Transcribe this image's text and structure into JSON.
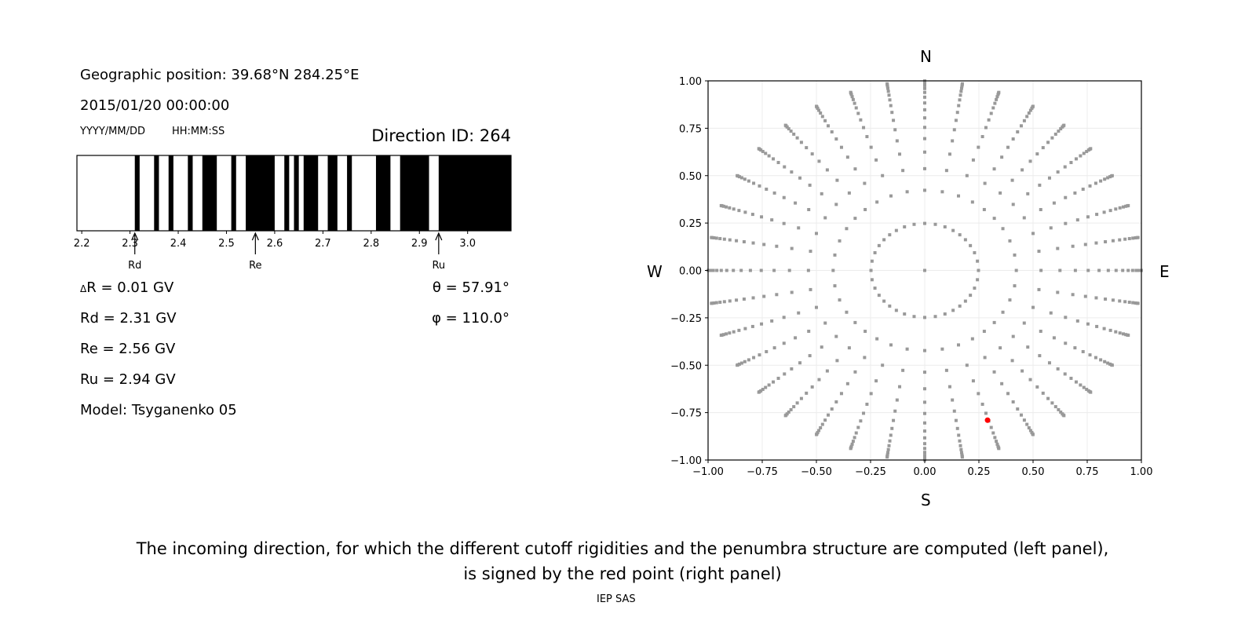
{
  "left_panel": {
    "position": "Geographic position: 39.68°N 284.25°E",
    "datetime": "2015/01/20 00:00:00",
    "date_format": "YYYY/MM/DD",
    "time_format": "HH:MM:SS",
    "direction_id": "Direction ID: 264",
    "delta_r": "R = 0.01 GV",
    "delta_symbol": "Δ",
    "rd": "Rd = 2.31 GV",
    "re": "Re = 2.56 GV",
    "ru": "Ru = 2.94 GV",
    "model": "Model: Tsyganenko 05",
    "theta": "θ = 57.91°",
    "phi": "φ = 110.0°"
  },
  "chart_data": [
    {
      "type": "bar",
      "description_type": "penumbra-strip",
      "xlim": [
        2.19,
        3.09
      ],
      "xticks": [
        "2.2",
        "2.3",
        "2.4",
        "2.5",
        "2.6",
        "2.7",
        "2.8",
        "2.9",
        "3.0"
      ],
      "black_intervals": [
        [
          2.31,
          2.32
        ],
        [
          2.35,
          2.36
        ],
        [
          2.38,
          2.39
        ],
        [
          2.42,
          2.43
        ],
        [
          2.45,
          2.48
        ],
        [
          2.51,
          2.52
        ],
        [
          2.54,
          2.6
        ],
        [
          2.62,
          2.63
        ],
        [
          2.64,
          2.65
        ],
        [
          2.66,
          2.69
        ],
        [
          2.71,
          2.73
        ],
        [
          2.75,
          2.76
        ],
        [
          2.81,
          2.84
        ],
        [
          2.86,
          2.92
        ],
        [
          2.94,
          3.09
        ]
      ],
      "markers": [
        {
          "label": "Rd",
          "value": 2.31
        },
        {
          "label": "Re",
          "value": 2.56
        },
        {
          "label": "Ru",
          "value": 2.94
        }
      ]
    },
    {
      "type": "scatter",
      "xlim": [
        -1,
        1
      ],
      "ylim": [
        -1,
        1
      ],
      "grid": true,
      "xticks": [
        "−1.00",
        "−0.75",
        "−0.50",
        "−0.25",
        "0.00",
        "0.25",
        "0.50",
        "0.75",
        "1.00"
      ],
      "yticks": [
        "1.00",
        "0.75",
        "0.50",
        "0.25",
        "0.00",
        "−0.25",
        "−0.50",
        "−0.75",
        "−1.00"
      ],
      "directions": {
        "north": "N",
        "south": "S",
        "west": "W",
        "east": "E"
      },
      "grid_points": {
        "ring_cos_zenith": [
          0.96875,
          0.90625,
          0.84375,
          0.78125,
          0.71875,
          0.65625,
          0.59375,
          0.53125,
          0.46875,
          0.40625,
          0.34375,
          0.28125,
          0.21875,
          0.15625,
          0.09375,
          0.03125
        ],
        "azimuth_step_deg": 10,
        "center_point": [
          0,
          0
        ],
        "color": "#999999"
      },
      "highlight_point": {
        "x": 0.29,
        "y": -0.79,
        "color": "#ff0000"
      }
    }
  ],
  "caption": {
    "line1": "The incoming direction, for which the different cutoff rigidities and the penumbra structure are computed (left panel),",
    "line2": "is signed by the red point (right panel)"
  },
  "footer": "IEP SAS"
}
